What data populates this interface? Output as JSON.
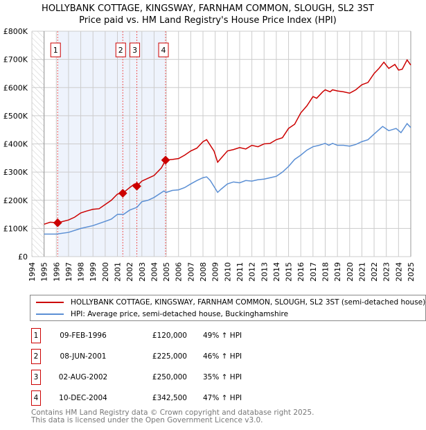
{
  "chart_data": {
    "type": "line",
    "title": "HOLLYBANK COTTAGE, KINGSWAY, FARNHAM COMMON, SLOUGH, SL2 3ST",
    "subtitle": "Price paid vs. HM Land Registry's House Price Index (HPI)",
    "xlim": [
      1994,
      2025
    ],
    "ylim": [
      0,
      800000
    ],
    "y_ticks": [
      {
        "v": 0,
        "label": "£0"
      },
      {
        "v": 100000,
        "label": "£100K"
      },
      {
        "v": 200000,
        "label": "£200K"
      },
      {
        "v": 300000,
        "label": "£300K"
      },
      {
        "v": 400000,
        "label": "£400K"
      },
      {
        "v": 500000,
        "label": "£500K"
      },
      {
        "v": 600000,
        "label": "£600K"
      },
      {
        "v": 700000,
        "label": "£700K"
      },
      {
        "v": 800000,
        "label": "£800K"
      }
    ],
    "x_ticks": [
      "1994",
      "1995",
      "1996",
      "1997",
      "1998",
      "1999",
      "2000",
      "2001",
      "2002",
      "2003",
      "2004",
      "2005",
      "2006",
      "2007",
      "2008",
      "2009",
      "2010",
      "2011",
      "2012",
      "2013",
      "2014",
      "2015",
      "2016",
      "2017",
      "2018",
      "2019",
      "2020",
      "2021",
      "2022",
      "2023",
      "2024",
      "2025"
    ],
    "grid": true,
    "series": [
      {
        "name": "HOLLYBANK COTTAGE, KINGSWAY, FARNHAM COMMON, SLOUGH, SL2 3ST (semi-detached house)",
        "color": "#cc0000",
        "points": [
          [
            1995,
            115000
          ],
          [
            1995.5,
            122000
          ],
          [
            1996.1,
            120000
          ],
          [
            1997,
            130000
          ],
          [
            1997.5,
            140000
          ],
          [
            1998,
            155000
          ],
          [
            1998.5,
            162000
          ],
          [
            1999,
            168000
          ],
          [
            1999.5,
            170000
          ],
          [
            2000,
            185000
          ],
          [
            2000.5,
            200000
          ],
          [
            2001,
            222000
          ],
          [
            2001.44,
            225000
          ],
          [
            2002,
            245000
          ],
          [
            2002.4,
            258000
          ],
          [
            2002.59,
            250000
          ],
          [
            2003,
            268000
          ],
          [
            2003.5,
            278000
          ],
          [
            2004,
            288000
          ],
          [
            2004.6,
            315000
          ],
          [
            2004.94,
            342500
          ],
          [
            2005.5,
            345000
          ],
          [
            2006,
            348000
          ],
          [
            2006.5,
            360000
          ],
          [
            2007,
            375000
          ],
          [
            2007.5,
            385000
          ],
          [
            2008,
            408000
          ],
          [
            2008.3,
            415000
          ],
          [
            2008.6,
            395000
          ],
          [
            2008.9,
            375000
          ],
          [
            2009.2,
            335000
          ],
          [
            2009.6,
            355000
          ],
          [
            2010,
            375000
          ],
          [
            2010.5,
            380000
          ],
          [
            2011,
            387000
          ],
          [
            2011.5,
            382000
          ],
          [
            2012,
            395000
          ],
          [
            2012.5,
            390000
          ],
          [
            2013,
            400000
          ],
          [
            2013.5,
            402000
          ],
          [
            2014,
            415000
          ],
          [
            2014.5,
            422000
          ],
          [
            2015,
            455000
          ],
          [
            2015.5,
            470000
          ],
          [
            2016,
            510000
          ],
          [
            2016.5,
            535000
          ],
          [
            2017,
            568000
          ],
          [
            2017.3,
            562000
          ],
          [
            2017.8,
            585000
          ],
          [
            2018,
            592000
          ],
          [
            2018.4,
            585000
          ],
          [
            2018.6,
            592000
          ],
          [
            2019,
            588000
          ],
          [
            2019.5,
            585000
          ],
          [
            2020,
            580000
          ],
          [
            2020.5,
            592000
          ],
          [
            2021,
            610000
          ],
          [
            2021.5,
            618000
          ],
          [
            2022,
            650000
          ],
          [
            2022.4,
            668000
          ],
          [
            2022.8,
            690000
          ],
          [
            2023.2,
            668000
          ],
          [
            2023.7,
            682000
          ],
          [
            2024,
            662000
          ],
          [
            2024.3,
            665000
          ],
          [
            2024.7,
            698000
          ],
          [
            2025,
            680000
          ]
        ]
      },
      {
        "name": "HPI: Average price, semi-detached house, Buckinghamshire",
        "color": "#5b8fd4",
        "points": [
          [
            1995,
            80000
          ],
          [
            1996,
            80000
          ],
          [
            1997,
            86000
          ],
          [
            1998,
            100000
          ],
          [
            1999,
            110000
          ],
          [
            2000,
            125000
          ],
          [
            2000.5,
            133000
          ],
          [
            2001,
            150000
          ],
          [
            2001.5,
            150000
          ],
          [
            2002,
            165000
          ],
          [
            2002.6,
            175000
          ],
          [
            2003,
            195000
          ],
          [
            2003.5,
            200000
          ],
          [
            2004,
            210000
          ],
          [
            2004.8,
            233000
          ],
          [
            2005,
            228000
          ],
          [
            2005.5,
            235000
          ],
          [
            2006,
            237000
          ],
          [
            2006.5,
            245000
          ],
          [
            2007,
            258000
          ],
          [
            2007.5,
            270000
          ],
          [
            2008,
            280000
          ],
          [
            2008.3,
            283000
          ],
          [
            2008.6,
            270000
          ],
          [
            2009.2,
            228000
          ],
          [
            2009.5,
            240000
          ],
          [
            2010,
            258000
          ],
          [
            2010.5,
            265000
          ],
          [
            2011,
            262000
          ],
          [
            2011.5,
            270000
          ],
          [
            2012,
            268000
          ],
          [
            2012.5,
            273000
          ],
          [
            2013,
            275000
          ],
          [
            2013.5,
            280000
          ],
          [
            2014,
            285000
          ],
          [
            2014.5,
            300000
          ],
          [
            2015,
            320000
          ],
          [
            2015.5,
            345000
          ],
          [
            2016,
            360000
          ],
          [
            2016.5,
            378000
          ],
          [
            2017,
            390000
          ],
          [
            2017.5,
            395000
          ],
          [
            2018,
            402000
          ],
          [
            2018.3,
            395000
          ],
          [
            2018.6,
            402000
          ],
          [
            2019,
            395000
          ],
          [
            2019.5,
            395000
          ],
          [
            2020,
            392000
          ],
          [
            2020.5,
            398000
          ],
          [
            2021,
            408000
          ],
          [
            2021.5,
            415000
          ],
          [
            2022,
            435000
          ],
          [
            2022.7,
            462000
          ],
          [
            2023.2,
            447000
          ],
          [
            2023.8,
            455000
          ],
          [
            2024.2,
            440000
          ],
          [
            2024.7,
            472000
          ],
          [
            2025,
            458000
          ]
        ]
      }
    ],
    "sales": [
      {
        "label": "1",
        "x": 1996.11,
        "price": 120000,
        "date": "09-FEB-1996",
        "price_text": "£120,000",
        "hpi_text": "49% ↑ HPI"
      },
      {
        "label": "2",
        "x": 2001.44,
        "price": 225000,
        "date": "08-JUN-2001",
        "price_text": "£225,000",
        "hpi_text": "46% ↑ HPI"
      },
      {
        "label": "3",
        "x": 2002.59,
        "price": 250000,
        "date": "02-AUG-2002",
        "price_text": "£250,000",
        "hpi_text": "35% ↑ HPI"
      },
      {
        "label": "4",
        "x": 2004.94,
        "price": 342500,
        "date": "10-DEC-2004",
        "price_text": "£342,500",
        "hpi_text": "47% ↑ HPI"
      }
    ],
    "legend_position": "bottom"
  },
  "legend": {
    "property": "HOLLYBANK COTTAGE, KINGSWAY, FARNHAM COMMON, SLOUGH, SL2 3ST (semi-detached house)",
    "hpi": "HPI: Average price, semi-detached house, Buckinghamshire"
  },
  "footer": {
    "line1": "Contains HM Land Registry data © Crown copyright and database right 2025.",
    "line2": "This data is licensed under the Open Government Licence v3.0."
  }
}
